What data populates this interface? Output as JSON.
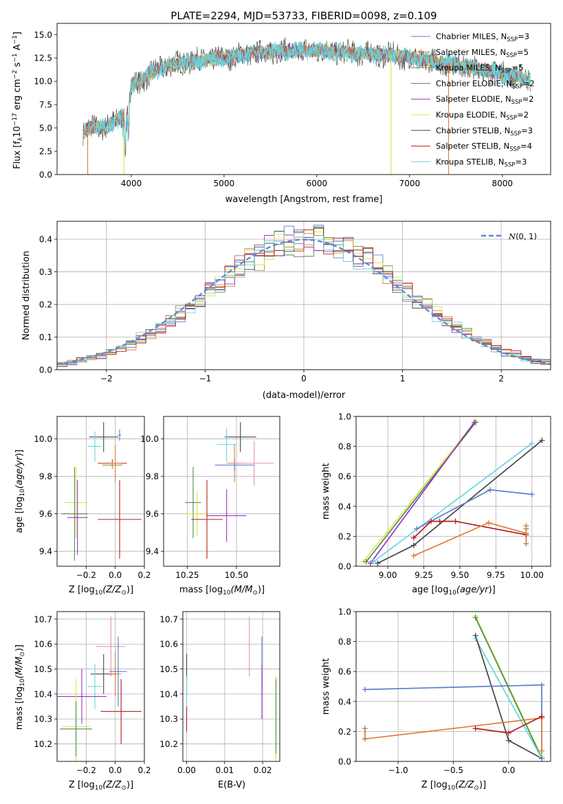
{
  "chart_data": [
    {
      "id": "spectrum",
      "type": "line",
      "title": "PLATE=2294, MJD=53733, FIBERID=0098, z=0.109",
      "xlabel": "wavelength [Angstrom, rest frame]",
      "ylabel": "Flux [fλ 10⁻¹⁷ erg cm⁻² s⁻¹ A⁻¹]",
      "xlim": [
        3200,
        8520
      ],
      "ylim": [
        0,
        16.2
      ],
      "xticks": [
        4000,
        5000,
        6000,
        7000,
        8000
      ],
      "yticks": [
        0.0,
        2.5,
        5.0,
        7.5,
        10.0,
        12.5,
        15.0
      ],
      "grid": false,
      "legend_position": "top-right",
      "continuum": {
        "x": [
          3480,
          3600,
          3700,
          3800,
          3900,
          3950,
          4000,
          4100,
          4300,
          4500,
          4800,
          5000,
          5300,
          5600,
          6000,
          6400,
          6800,
          7200,
          7600,
          8000,
          8300
        ],
        "y": [
          4.5,
          5.2,
          5.0,
          5.5,
          6.3,
          5.6,
          9.6,
          10.0,
          11.4,
          11.9,
          12.3,
          12.5,
          13.0,
          13.2,
          13.3,
          13.0,
          12.8,
          12.2,
          11.6,
          10.8,
          10.2
        ]
      },
      "sharp_features": [
        {
          "x": 3530,
          "y_min": 0,
          "y_max": 5.2,
          "series": "Salpeter MILES"
        },
        {
          "x": 3920,
          "y_min": 0,
          "y_max": 5.0,
          "series": "Kroupa ELODIE"
        },
        {
          "x": 6800,
          "y_min": 0,
          "y_max": 12.8,
          "series": "Kroupa ELODIE"
        },
        {
          "x": 7420,
          "y_min": 0,
          "y_max": 12.0,
          "series": "Salpeter MILES"
        }
      ],
      "series": [
        {
          "name": "Chabrier MILES, N_SSP=3",
          "color": "#5b7dc8"
        },
        {
          "name": "Salpeter MILES, N_SSP=5",
          "color": "#e07b39"
        },
        {
          "name": "Kroupa MILES, N_SSP=5",
          "color": "#b5853a"
        },
        {
          "name": "Chabrier ELODIE, N_SSP=2",
          "color": "#4e8a4e"
        },
        {
          "name": "Salpeter ELODIE, N_SSP=2",
          "color": "#9b30c8"
        },
        {
          "name": "Kroupa ELODIE, N_SSP=2",
          "color": "#d6e64a"
        },
        {
          "name": "Chabrier STELIB, N_SSP=3",
          "color": "#444444"
        },
        {
          "name": "Salpeter STELIB, N_SSP=4",
          "color": "#b81c1c"
        },
        {
          "name": "Kroupa STELIB, N_SSP=3",
          "color": "#66d6e0"
        }
      ],
      "legend_labels": [
        {
          "main": "Chabrier MILES, N",
          "sub": "SSP",
          "tail": "=3",
          "color": "#5b7dc8"
        },
        {
          "main": "Salpeter MILES, N",
          "sub": "SSP",
          "tail": "=5",
          "color": "#e07b39"
        },
        {
          "main": "Kroupa MILES, N",
          "sub": "SSP",
          "tail": "=5",
          "color": "#b5853a"
        },
        {
          "main": "Chabrier ELODIE, N",
          "sub": "SSP",
          "tail": "=2",
          "color": "#4e8a4e"
        },
        {
          "main": "Salpeter ELODIE, N",
          "sub": "SSP",
          "tail": "=2",
          "color": "#9b30c8"
        },
        {
          "main": "Kroupa ELODIE, N",
          "sub": "SSP",
          "tail": "=2",
          "color": "#d6e64a"
        },
        {
          "main": "Chabrier STELIB, N",
          "sub": "SSP",
          "tail": "=3",
          "color": "#444444"
        },
        {
          "main": "Salpeter STELIB, N",
          "sub": "SSP",
          "tail": "=4",
          "color": "#b81c1c"
        },
        {
          "main": "Kroupa STELIB, N",
          "sub": "SSP",
          "tail": "=3",
          "color": "#66d6e0"
        }
      ]
    },
    {
      "id": "residuals",
      "type": "histogram",
      "xlabel": "(data-model)/error",
      "ylabel": "Normed distribution",
      "xlim": [
        -2.5,
        2.5
      ],
      "ylim": [
        0,
        0.455
      ],
      "xticks": [
        -2,
        -1,
        0,
        1,
        2
      ],
      "yticks": [
        0.0,
        0.1,
        0.2,
        0.3,
        0.4
      ],
      "grid": true,
      "legend_position": "top-right",
      "bin_width": 0.1,
      "gaussian": {
        "name": "N(0, 1)",
        "mu": 0,
        "sigma": 1,
        "color": "#5b8bd6",
        "style": "dashed"
      },
      "series_colors": [
        "#5b7dc8",
        "#e07b39",
        "#b5853a",
        "#4e8a4e",
        "#9b30c8",
        "#d6e64a",
        "#444444",
        "#b81c1c",
        "#66d6e0"
      ],
      "tail_bins": [
        {
          "x": -2.45,
          "y": 0.03
        },
        {
          "x": -2.35,
          "y": 0.042
        },
        {
          "x": -2.25,
          "y": 0.038
        },
        {
          "x": 2.25,
          "y": 0.04
        },
        {
          "x": 2.35,
          "y": 0.038
        },
        {
          "x": 2.45,
          "y": 0.03
        }
      ]
    },
    {
      "id": "age-vs-Z",
      "type": "scatter",
      "xlabel": "Z [log10(Z/Z⊙)]",
      "ylabel": "age  [log10(age/yr)]",
      "xlim": [
        -0.4,
        0.2
      ],
      "ylim": [
        9.32,
        10.12
      ],
      "xticks": [
        -0.2,
        0.0,
        0.2
      ],
      "yticks": [
        9.4,
        9.6,
        9.8,
        10.0
      ],
      "grid": true,
      "points": [
        {
          "x": -0.08,
          "y": 10.01,
          "xerr": 0.1,
          "yerr": 0.08,
          "color": "#444444"
        },
        {
          "x": 0.03,
          "y": 10.02,
          "xerr": 0.01,
          "yerr": 0.03,
          "color": "#5b7dc8"
        },
        {
          "x": -0.14,
          "y": 9.96,
          "xerr": 0.05,
          "yerr": 0.08,
          "color": "#66d6e0"
        },
        {
          "x": -0.02,
          "y": 9.87,
          "xerr": 0.1,
          "yerr": 0.02,
          "color": "#b81c1c"
        },
        {
          "x": 0.0,
          "y": 9.87,
          "xerr": 0.04,
          "yerr": 0.1,
          "color": "#e07b39"
        },
        {
          "x": -0.02,
          "y": 9.86,
          "xerr": 0.07,
          "yerr": 0.02,
          "color": "#b5853a"
        },
        {
          "x": -0.27,
          "y": 9.66,
          "xerr": 0.08,
          "yerr": 0.19,
          "color": "#d6e64a"
        },
        {
          "x": -0.28,
          "y": 9.6,
          "xerr": 0.09,
          "yerr": 0.25,
          "color": "#4e8a4e"
        },
        {
          "x": -0.26,
          "y": 9.58,
          "xerr": 0.07,
          "yerr": 0.2,
          "color": "#9b30c8"
        },
        {
          "x": 0.03,
          "y": 9.57,
          "xerr": 0.15,
          "yerr": 0.21,
          "color": "#b81c1c"
        }
      ]
    },
    {
      "id": "age-vs-mass",
      "type": "scatter",
      "xlabel": "mass [log10(M/M⊙)]",
      "ylabel": "",
      "xlim": [
        10.13,
        10.72
      ],
      "ylim": [
        9.32,
        10.12
      ],
      "xticks": [
        10.25,
        10.5
      ],
      "yticks": [
        9.4,
        9.6,
        9.8,
        10.0
      ],
      "grid": true,
      "points": [
        {
          "x": 10.52,
          "y": 10.01,
          "xerr": 0.08,
          "yerr": 0.08,
          "color": "#444444"
        },
        {
          "x": 10.45,
          "y": 9.97,
          "xerr": 0.05,
          "yerr": 0.09,
          "color": "#66d6e0"
        },
        {
          "x": 10.49,
          "y": 9.87,
          "xerr": 0.04,
          "yerr": 0.1,
          "color": "#e07b39"
        },
        {
          "x": 10.49,
          "y": 9.86,
          "xerr": 0.1,
          "yerr": 0.03,
          "color": "#5b7dc8"
        },
        {
          "x": 10.59,
          "y": 9.87,
          "xerr": 0.1,
          "yerr": 0.12,
          "color": "#e88ab0"
        },
        {
          "x": 10.28,
          "y": 9.66,
          "xerr": 0.04,
          "yerr": 0.19,
          "color": "#4e8a4e"
        },
        {
          "x": 10.3,
          "y": 9.6,
          "xerr": 0.06,
          "yerr": 0.12,
          "color": "#d6e64a"
        },
        {
          "x": 10.45,
          "y": 9.59,
          "xerr": 0.1,
          "yerr": 0.14,
          "color": "#9b30c8"
        },
        {
          "x": 10.35,
          "y": 9.57,
          "xerr": 0.08,
          "yerr": 0.21,
          "color": "#b81c1c"
        }
      ]
    },
    {
      "id": "massweight-vs-age",
      "type": "line",
      "xlabel": "age  [log10(age/yr)]",
      "ylabel": "mass weight",
      "xlim": [
        8.78,
        10.13
      ],
      "ylim": [
        0,
        1.0
      ],
      "xticks": [
        9.0,
        9.25,
        9.5,
        9.75,
        10.0
      ],
      "yticks": [
        0.0,
        0.2,
        0.4,
        0.6,
        0.8,
        1.0
      ],
      "grid": true,
      "series": [
        {
          "color": "#d6e64a",
          "x": [
            8.83,
            9.61
          ],
          "y": [
            0.03,
            0.97
          ]
        },
        {
          "color": "#4e8a4e",
          "x": [
            8.85,
            9.61
          ],
          "y": [
            0.03,
            0.96
          ]
        },
        {
          "color": "#9b30c8",
          "x": [
            8.88,
            9.6
          ],
          "y": [
            0.02,
            0.96
          ]
        },
        {
          "color": "#444444",
          "x": [
            8.93,
            9.18,
            10.07
          ],
          "y": [
            0.02,
            0.14,
            0.84
          ]
        },
        {
          "color": "#66d6e0",
          "x": [
            8.9,
            10.0
          ],
          "y": [
            0.03,
            0.82
          ]
        },
        {
          "color": "#5b7dc8",
          "x": [
            9.2,
            9.71,
            10.0
          ],
          "y": [
            0.25,
            0.51,
            0.48
          ]
        },
        {
          "color": "#b81c1c",
          "x": [
            9.18,
            9.3,
            9.36,
            9.47,
            9.96
          ],
          "y": [
            0.19,
            0.3,
            0.3,
            0.3,
            0.21
          ]
        },
        {
          "color": "#e07b39",
          "x": [
            9.18,
            9.7,
            9.96
          ],
          "y": [
            0.07,
            0.29,
            0.22
          ]
        },
        {
          "color": "#b5853a",
          "x": [
            9.96,
            9.96,
            9.96
          ],
          "y": [
            0.15,
            0.25,
            0.27
          ]
        }
      ]
    },
    {
      "id": "mass-vs-Z",
      "type": "scatter",
      "xlabel": "Z [log10(Z/Z⊙)]",
      "ylabel": "mass [log10(M/M⊙)]",
      "xlim": [
        -0.4,
        0.2
      ],
      "ylim": [
        10.13,
        10.73
      ],
      "xticks": [
        -0.2,
        0.0,
        0.2
      ],
      "yticks": [
        10.2,
        10.3,
        10.4,
        10.5,
        10.6,
        10.7
      ],
      "grid": true,
      "points": [
        {
          "x": -0.03,
          "y": 10.59,
          "xerr": 0.1,
          "yerr": 0.12,
          "color": "#e88ab0"
        },
        {
          "x": 0.02,
          "y": 10.49,
          "xerr": 0.06,
          "yerr": 0.14,
          "color": "#5b7dc8"
        },
        {
          "x": -0.08,
          "y": 10.48,
          "xerr": 0.09,
          "yerr": 0.08,
          "color": "#444444"
        },
        {
          "x": 0.0,
          "y": 10.48,
          "xerr": 0.04,
          "yerr": 0.09,
          "color": "#e07b39"
        },
        {
          "x": -0.14,
          "y": 10.43,
          "xerr": 0.05,
          "yerr": 0.09,
          "color": "#66d6e0"
        },
        {
          "x": -0.23,
          "y": 10.39,
          "xerr": 0.17,
          "yerr": 0.11,
          "color": "#9b30c8"
        },
        {
          "x": 0.04,
          "y": 10.33,
          "xerr": 0.14,
          "yerr": 0.13,
          "color": "#b81c1c"
        },
        {
          "x": -0.27,
          "y": 10.27,
          "xerr": 0.1,
          "yerr": 0.19,
          "color": "#d6e64a"
        },
        {
          "x": -0.27,
          "y": 10.26,
          "xerr": 0.11,
          "yerr": 0.11,
          "color": "#4e8a4e"
        }
      ]
    },
    {
      "id": "mass-vs-ebv",
      "type": "scatter",
      "xlabel": "E(B-V)",
      "ylabel": "",
      "xlim": [
        -0.001,
        0.0245
      ],
      "ylim": [
        10.13,
        10.73
      ],
      "xticks": [
        0.0,
        0.01,
        0.02
      ],
      "yticks": [
        10.2,
        10.3,
        10.4,
        10.5,
        10.6,
        10.7
      ],
      "grid": true,
      "points": [
        {
          "x": 0.0,
          "y": 10.48,
          "yerr": 0.08,
          "color": "#444444"
        },
        {
          "x": 0.0,
          "y": 10.4,
          "yerr": 0.07,
          "color": "#66d6e0"
        },
        {
          "x": 0.0,
          "y": 10.3,
          "yerr": 0.05,
          "color": "#b81c1c"
        },
        {
          "x": 0.0165,
          "y": 10.59,
          "yerr": 0.12,
          "color": "#e88ab0"
        },
        {
          "x": 0.0198,
          "y": 10.52,
          "yerr": 0.11,
          "color": "#5b7dc8"
        },
        {
          "x": 0.0198,
          "y": 10.41,
          "yerr": 0.11,
          "color": "#9b30c8"
        },
        {
          "x": 0.0235,
          "y": 10.3,
          "yerr": 0.17,
          "color": "#d6e64a"
        },
        {
          "x": 0.0235,
          "y": 10.31,
          "yerr": 0.15,
          "color": "#4e8a4e"
        }
      ]
    },
    {
      "id": "massweight-vs-Z",
      "type": "line",
      "xlabel": "Z [log10(Z/Z⊙)]",
      "ylabel": "mass weight",
      "xlim": [
        -1.38,
        0.38
      ],
      "ylim": [
        0,
        1.0
      ],
      "xticks": [
        -1.0,
        -0.5,
        0.0
      ],
      "yticks": [
        0.0,
        0.2,
        0.4,
        0.6,
        0.8,
        1.0
      ],
      "grid": true,
      "series": [
        {
          "color": "#d6e64a",
          "x": [
            -0.3,
            0.3
          ],
          "y": [
            0.97,
            0.03
          ]
        },
        {
          "color": "#4e8a4e",
          "x": [
            -0.3,
            0.3
          ],
          "y": [
            0.96,
            0.02
          ]
        },
        {
          "color": "#66d6e0",
          "x": [
            -0.3,
            0.3
          ],
          "y": [
            0.82,
            0.02
          ]
        },
        {
          "color": "#444444",
          "x": [
            -0.3,
            0.0,
            0.3
          ],
          "y": [
            0.84,
            0.14,
            0.02
          ]
        },
        {
          "color": "#5b7dc8",
          "x": [
            -1.3,
            0.3,
            0.3
          ],
          "y": [
            0.48,
            0.51,
            0.02
          ]
        },
        {
          "color": "#e07b39",
          "x": [
            -1.3,
            0.3,
            0.3
          ],
          "y": [
            0.15,
            0.29,
            0.07
          ]
        },
        {
          "color": "#b5853a",
          "x": [
            -1.3,
            -1.3
          ],
          "y": [
            0.22,
            0.15
          ]
        },
        {
          "color": "#b81c1c",
          "x": [
            -0.3,
            0.0,
            0.3,
            0.3
          ],
          "y": [
            0.22,
            0.19,
            0.3,
            0.3
          ]
        }
      ]
    }
  ]
}
